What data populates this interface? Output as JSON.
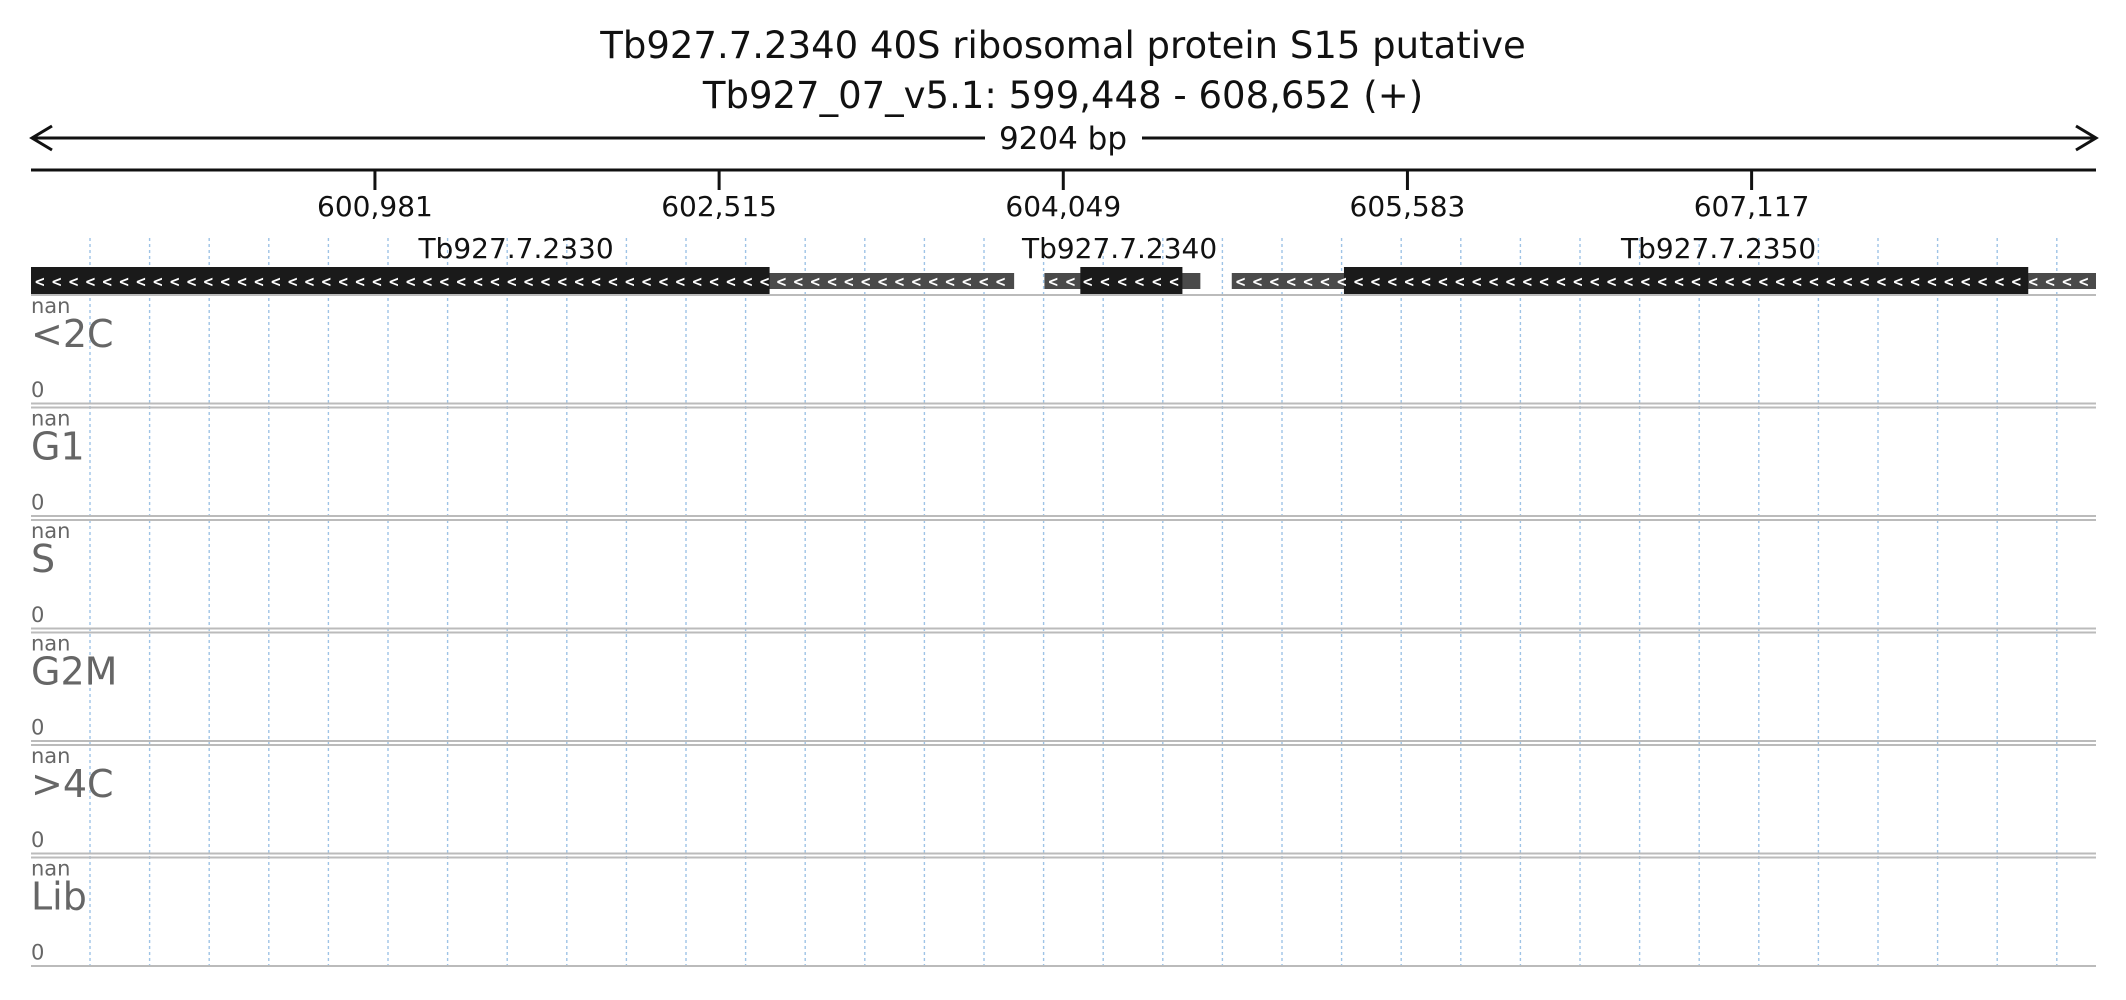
{
  "header": {
    "title_line1": "Tb927.7.2340  40S ribosomal protein S15  putative",
    "title_line2": "Tb927_07_v5.1: 599,448 - 608,652 (+)",
    "span_label": "9204 bp"
  },
  "region": {
    "start": 599448,
    "end": 608652
  },
  "ticks": [
    {
      "pos": 600981,
      "label": "600,981"
    },
    {
      "pos": 602515,
      "label": "602,515"
    },
    {
      "pos": 604049,
      "label": "604,049"
    },
    {
      "pos": 605583,
      "label": "605,583"
    },
    {
      "pos": 607117,
      "label": "607,117"
    }
  ],
  "genes": [
    {
      "name": "Tb927.7.2330",
      "strand": "-",
      "utr": [
        599448,
        603830
      ],
      "cds": [
        599448,
        602740
      ],
      "label_at": 601610
    },
    {
      "name": "Tb927.7.2340",
      "strand": "-",
      "utr": [
        603965,
        604660
      ],
      "cds": [
        604125,
        604580
      ],
      "label_at": 604300
    },
    {
      "name": "Tb927.7.2350",
      "strand": "-",
      "utr": [
        604800,
        608652
      ],
      "cds": [
        605300,
        608350
      ],
      "label_at": 606970
    }
  ],
  "tracks": [
    {
      "name": "<2C",
      "max": "nan",
      "min": "0"
    },
    {
      "name": "G1",
      "max": "nan",
      "min": "0"
    },
    {
      "name": "S",
      "max": "nan",
      "min": "0"
    },
    {
      "name": "G2M",
      "max": "nan",
      "min": "0"
    },
    {
      "name": ">4C",
      "max": "nan",
      "min": "0"
    },
    {
      "name": "Lib",
      "max": "nan",
      "min": "0"
    }
  ],
  "colors": {
    "gene_cds": "#1a1a1a",
    "gene_utr": "#4a4a4a",
    "grid": "#9ec3e6",
    "track_border": "#bbbbbb"
  }
}
